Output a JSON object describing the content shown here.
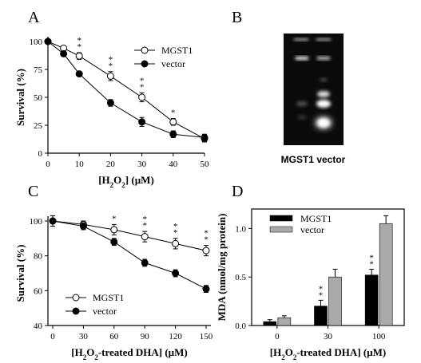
{
  "gel_caption": "MGST1 vector",
  "chart_data": [
    {
      "panel": "A",
      "type": "line",
      "xlabel": "[H2O2] (µM)",
      "xlabel_parts": [
        "[H",
        "2",
        "O",
        "2",
        "] (µM)"
      ],
      "ylabel": "Survival (%)",
      "xlim": [
        0,
        50
      ],
      "ylim": [
        0,
        100
      ],
      "xticks": [
        0,
        10,
        20,
        30,
        40,
        50
      ],
      "yticks": [
        0,
        25,
        50,
        75,
        100
      ],
      "legend_position": "top-right",
      "series": [
        {
          "name": "MGST1",
          "marker": "open-circle",
          "x": [
            0,
            5,
            10,
            20,
            30,
            40,
            50
          ],
          "y": [
            100,
            94,
            87,
            69,
            50,
            28,
            13
          ],
          "err": [
            0,
            2,
            3,
            4,
            4,
            3,
            3
          ]
        },
        {
          "name": "vector",
          "marker": "filled-circle",
          "x": [
            0,
            5,
            10,
            20,
            30,
            40,
            50
          ],
          "y": [
            100,
            89,
            71,
            45,
            28,
            17,
            14
          ],
          "err": [
            0,
            2,
            2,
            3,
            4,
            3,
            3
          ]
        }
      ],
      "annotations": [
        {
          "x": 10,
          "text": "**"
        },
        {
          "x": 20,
          "text": "**"
        },
        {
          "x": 30,
          "text": "**"
        },
        {
          "x": 40,
          "text": "*"
        }
      ]
    },
    {
      "panel": "C",
      "type": "line",
      "xlabel": "[H2O2-treated DHA] (µM)",
      "xlabel_parts": [
        "[H",
        "2",
        "O",
        "2",
        "-treated DHA] (µM)"
      ],
      "ylabel": "Survival (%)",
      "xlim": [
        0,
        150
      ],
      "ylim": [
        40,
        100
      ],
      "xticks": [
        0,
        30,
        60,
        90,
        120,
        150
      ],
      "yticks": [
        40,
        60,
        80,
        100
      ],
      "legend_position": "bottom-left",
      "series": [
        {
          "name": "MGST1",
          "marker": "open-circle",
          "x": [
            0,
            30,
            60,
            90,
            120,
            150
          ],
          "y": [
            100,
            98,
            95,
            91,
            87,
            83
          ],
          "err": [
            3,
            2,
            3,
            3,
            3,
            3
          ]
        },
        {
          "name": "vector",
          "marker": "filled-circle",
          "x": [
            0,
            30,
            60,
            90,
            120,
            150
          ],
          "y": [
            100,
            97,
            88,
            76,
            70,
            61
          ],
          "err": [
            3,
            2,
            2,
            2,
            2,
            2
          ]
        }
      ],
      "annotations": [
        {
          "x": 60,
          "text": "*"
        },
        {
          "x": 90,
          "text": "**"
        },
        {
          "x": 120,
          "text": "**"
        },
        {
          "x": 150,
          "text": "**"
        }
      ]
    },
    {
      "panel": "D",
      "type": "bar",
      "xlabel": "[H2O2-treated DHA] (µM)",
      "xlabel_parts": [
        "[H",
        "2",
        "O",
        "2",
        "-treated DHA] (µM)"
      ],
      "ylabel": "MDA (nmol/mg protein)",
      "categories": [
        "0",
        "30",
        "100"
      ],
      "ylim": [
        0,
        1.2
      ],
      "yticks": [
        0.0,
        0.5,
        1.0
      ],
      "ytick_labels": [
        "0.0",
        "0.5",
        "1.0"
      ],
      "legend_position": "top-left",
      "series": [
        {
          "name": "MGST1",
          "color": "#000000",
          "values": [
            0.04,
            0.2,
            0.52
          ],
          "err": [
            0.02,
            0.06,
            0.06
          ]
        },
        {
          "name": "vector",
          "color": "#aaaaaa",
          "values": [
            0.08,
            0.5,
            1.05
          ],
          "err": [
            0.02,
            0.08,
            0.08
          ]
        }
      ],
      "annotations": [
        {
          "category": "30",
          "series": "MGST1",
          "text": "**"
        },
        {
          "category": "100",
          "series": "MGST1",
          "text": "**"
        }
      ]
    }
  ]
}
